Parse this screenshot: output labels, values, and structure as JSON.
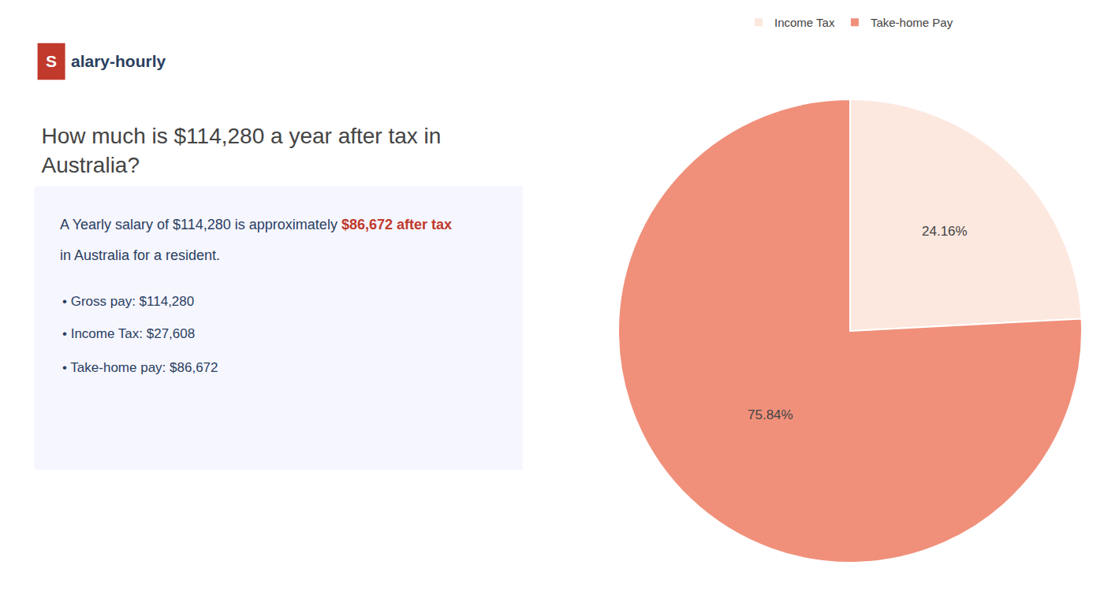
{
  "chart_data": {
    "type": "pie",
    "title": "How much is $114,280 a year after tax in\nAustralia?",
    "categories": [
      "Income Tax",
      "Take-home Pay"
    ],
    "values": [
      24.16,
      75.84
    ],
    "value_labels": [
      "24.16%",
      "75.84%"
    ],
    "colors": [
      "#fce8df",
      "#f0907a"
    ],
    "data_labels": true,
    "legend": "top",
    "annotations": [
      {
        "text": "S",
        "color": "#c0392b"
      },
      {
        "text": "alary-hourly"
      },
      {
        "text": "A Yearly salary of $114,280 is approximately "
      },
      {
        "text": "$86,672 after tax",
        "color": "#c0392b"
      },
      {
        "text": "in Australia for a resident."
      },
      {
        "text": "• Gross pay: $114,280"
      },
      {
        "text": "• Income Tax: $27,608"
      },
      {
        "text": "• Take-home pay: $86,672"
      }
    ]
  }
}
